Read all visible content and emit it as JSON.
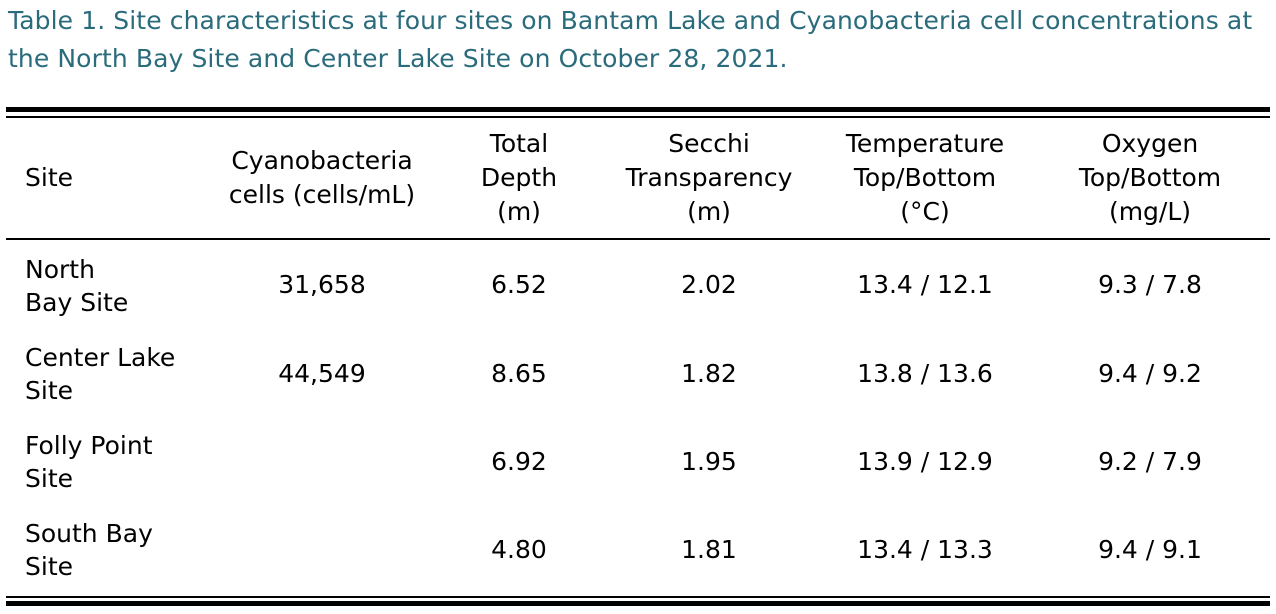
{
  "caption": "Table 1. Site characteristics at four sites on Bantam Lake and Cyanobacteria cell concentrations at the North Bay Site and Center Lake Site on October 28, 2021.",
  "colors": {
    "caption": "#2a6b7c",
    "text": "#000000",
    "rules": "#000000"
  },
  "table": {
    "headers": [
      "Site",
      "Cyanobacteria\ncells (cells/mL)",
      "Total\nDepth\n(m)",
      "Secchi\nTransparency\n(m)",
      "Temperature\nTop/Bottom\n(°C)",
      "Oxygen\nTop/Bottom\n(mg/L)"
    ],
    "rows": [
      {
        "site": "North\nBay Site",
        "cyanobacteria": "31,658",
        "depth": "6.52",
        "secchi": "2.02",
        "temperature": "13.4 / 12.1",
        "oxygen": "9.3 / 7.8"
      },
      {
        "site": "Center Lake\nSite",
        "cyanobacteria": "44,549",
        "depth": "8.65",
        "secchi": "1.82",
        "temperature": "13.8 / 13.6",
        "oxygen": "9.4 / 9.2"
      },
      {
        "site": "Folly Point\nSite",
        "cyanobacteria": "",
        "depth": "6.92",
        "secchi": "1.95",
        "temperature": "13.9 / 12.9",
        "oxygen": "9.2 / 7.9"
      },
      {
        "site": "South Bay\nSite",
        "cyanobacteria": "",
        "depth": "4.80",
        "secchi": "1.81",
        "temperature": "13.4 / 13.3",
        "oxygen": "9.4 / 9.1"
      }
    ]
  }
}
